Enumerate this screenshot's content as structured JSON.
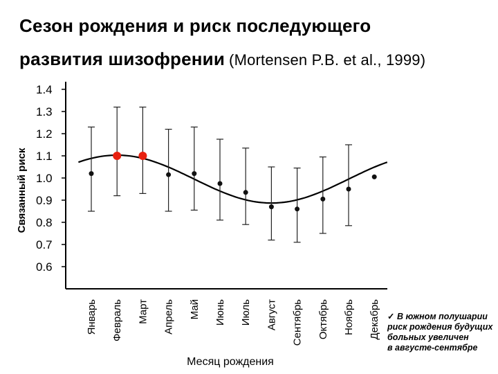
{
  "title": {
    "line1": "Сезон рождения и риск последующего",
    "line2": "развития шизофрении",
    "citation": "(Mortensen P.B. et al., 1999)"
  },
  "chart_data": {
    "type": "scatter",
    "xlabel": "Месяц рождения",
    "ylabel": "Связанный риск",
    "ylim": [
      0.6,
      1.4
    ],
    "yticks": [
      "0.6",
      "0.7",
      "0.8",
      "0.9",
      "1.0",
      "1.1",
      "1.2",
      "1.3",
      "1.4"
    ],
    "categories": [
      "Январь",
      "Февраль",
      "Март",
      "Апрель",
      "Май",
      "Июнь",
      "Июль",
      "Август",
      "Сентябрь",
      "Октябрь",
      "Ноябрь",
      "Декабрь"
    ],
    "series": [
      {
        "values": [
          1.02,
          1.1,
          1.1,
          1.015,
          1.02,
          0.975,
          0.935,
          0.87,
          0.86,
          0.905,
          0.95,
          1.005
        ],
        "ci_low": [
          0.85,
          0.92,
          0.93,
          0.85,
          0.855,
          0.81,
          0.79,
          0.72,
          0.71,
          0.75,
          0.785,
          null
        ],
        "ci_high": [
          1.23,
          1.32,
          1.32,
          1.22,
          1.23,
          1.175,
          1.135,
          1.05,
          1.045,
          1.095,
          1.15,
          null
        ],
        "highlighted": [
          false,
          true,
          true,
          false,
          false,
          false,
          false,
          false,
          false,
          false,
          false,
          false
        ]
      }
    ],
    "trend": {
      "type": "sinusoid",
      "mean": 0.995,
      "amplitude": 0.108,
      "peak_month": "Февраль"
    },
    "colors": {
      "point": "#111111",
      "highlight": "#e8200f",
      "axis": "#000000"
    }
  },
  "note": {
    "check_icon": "checkmark-icon",
    "lines": [
      "В южном полушарии",
      "риск рождения будущих",
      "больных увеличен",
      "в августе-сентябре"
    ]
  }
}
